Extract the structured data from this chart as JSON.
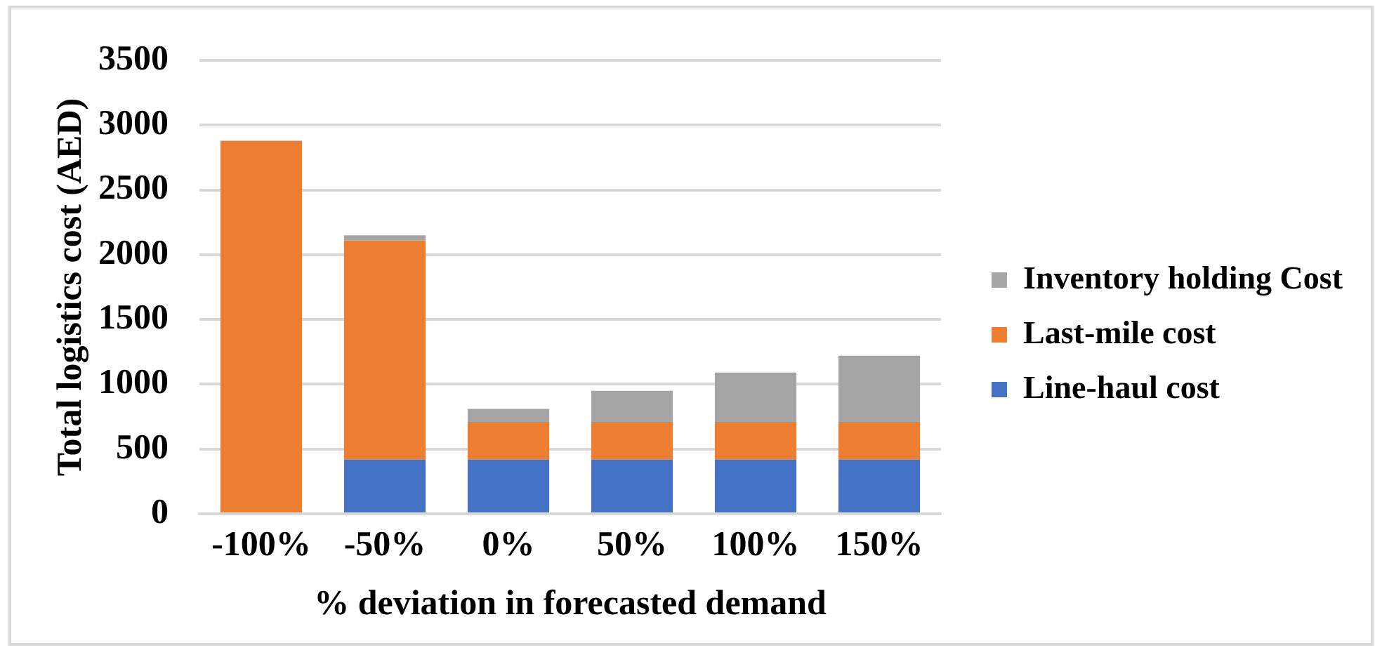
{
  "chart_data": {
    "type": "bar",
    "xlabel": "% deviation in forecasted demand",
    "ylabel": "Total logistics cost (AED)",
    "categories": [
      "-100%",
      "-50%",
      "0%",
      "50%",
      "100%",
      "150%"
    ],
    "series": [
      {
        "name": "Line-haul cost",
        "color": "#4472c4",
        "values": [
          0,
          420,
          420,
          420,
          420,
          420
        ]
      },
      {
        "name": "Last-mile cost",
        "color": "#ed7d31",
        "values": [
          2880,
          1690,
          290,
          290,
          290,
          290
        ]
      },
      {
        "name": "Inventory holding Cost",
        "color": "#a5a5a5",
        "values": [
          0,
          40,
          100,
          240,
          380,
          510
        ]
      }
    ],
    "stacked": true,
    "ylim": [
      0,
      3500
    ],
    "yticks": [
      0,
      500,
      1000,
      1500,
      2000,
      2500,
      3000,
      3500
    ],
    "grid": "y",
    "legend": "right"
  }
}
